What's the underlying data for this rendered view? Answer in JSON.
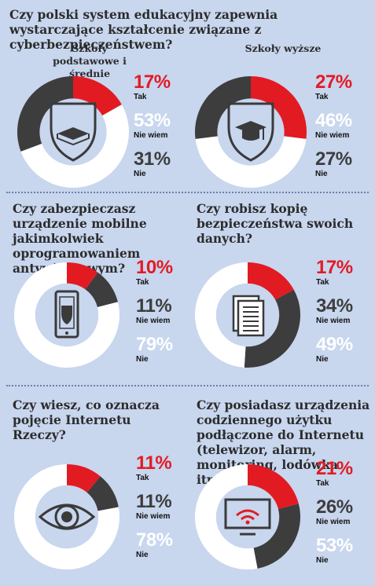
{
  "colors": {
    "tak": "#e21b23",
    "nie_dark": "#3d3d3d",
    "white": "#ffffff",
    "icon": "#3a3a3a",
    "background": "#c8d6ee"
  },
  "questions": {
    "q1": "Czy polski system edukacyjny zapewnia wystarczające kształcenie związane z cyberbezpieczeństwem?",
    "q2": "Czy zabezpieczasz urządzenie mobilne jakimkolwiek oprogramowaniem antywirusowym?",
    "q3": "Czy robisz kopię bezpieczeństwa swoich danych?",
    "q4": "Czy wiesz, co oznacza pojęcie Internetu Rzeczy?",
    "q5": "Czy posiadasz urządzenia codziennego użytku podłączone do Internetu (telewizor, alarm, monitoring, lodówka itp.)?"
  },
  "subtitles": {
    "schools_primary": "Szkoły podstawowe i średnie",
    "schools_higher": "Szkoły wyższe"
  },
  "chart_data": [
    {
      "type": "pie",
      "donut": true,
      "group": "q1",
      "title": "Szkoły podstawowe i średnie",
      "icon": "book-icon",
      "categories": [
        "Tak",
        "Nie wiem",
        "Nie"
      ],
      "values": [
        17,
        53,
        31
      ],
      "value_labels": [
        "17%",
        "53%",
        "31%"
      ],
      "colors": [
        "#e21b23",
        "#ffffff",
        "#3d3d3d"
      ]
    },
    {
      "type": "pie",
      "donut": true,
      "group": "q1",
      "title": "Szkoły wyższe",
      "icon": "graduation-cap-icon",
      "categories": [
        "Tak",
        "Nie wiem",
        "Nie"
      ],
      "values": [
        27,
        46,
        27
      ],
      "value_labels": [
        "27%",
        "46%",
        "27%"
      ],
      "colors": [
        "#e21b23",
        "#ffffff",
        "#3d3d3d"
      ]
    },
    {
      "type": "pie",
      "donut": true,
      "group": "q2",
      "icon": "smartphone-shield-icon",
      "categories": [
        "Tak",
        "Nie wiem",
        "Nie"
      ],
      "values": [
        10,
        11,
        79
      ],
      "value_labels": [
        "10%",
        "11%",
        "79%"
      ],
      "colors": [
        "#e21b23",
        "#3d3d3d",
        "#ffffff"
      ]
    },
    {
      "type": "pie",
      "donut": true,
      "group": "q3",
      "icon": "documents-icon",
      "categories": [
        "Tak",
        "Nie wiem",
        "Nie"
      ],
      "values": [
        17,
        34,
        49
      ],
      "value_labels": [
        "17%",
        "34%",
        "49%"
      ],
      "colors": [
        "#e21b23",
        "#3d3d3d",
        "#ffffff"
      ]
    },
    {
      "type": "pie",
      "donut": true,
      "group": "q4",
      "icon": "eye-icon",
      "categories": [
        "Tak",
        "Nie wiem",
        "Nie"
      ],
      "values": [
        11,
        11,
        78
      ],
      "value_labels": [
        "11%",
        "11%",
        "78%"
      ],
      "colors": [
        "#e21b23",
        "#3d3d3d",
        "#ffffff"
      ]
    },
    {
      "type": "pie",
      "donut": true,
      "group": "q5",
      "icon": "smart-tv-icon",
      "categories": [
        "Tak",
        "Nie wiem",
        "Nie"
      ],
      "values": [
        21,
        26,
        53
      ],
      "value_labels": [
        "21%",
        "26%",
        "53%"
      ],
      "colors": [
        "#e21b23",
        "#3d3d3d",
        "#ffffff"
      ]
    }
  ]
}
